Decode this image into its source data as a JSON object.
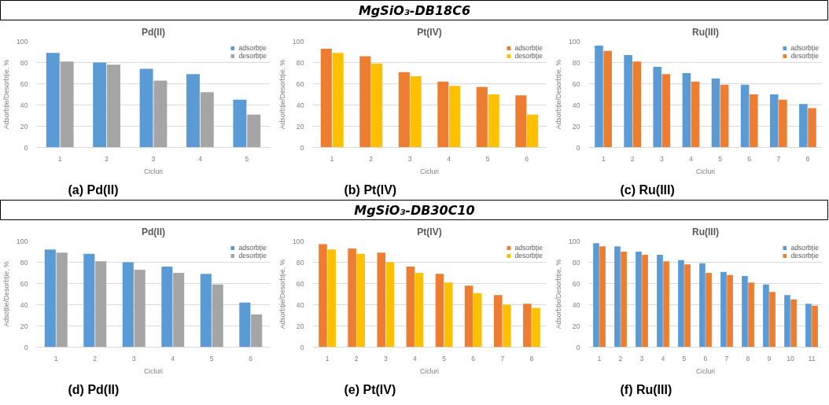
{
  "chart_data": [
    {
      "type": "other",
      "title": "MgSiO₃-DB18C6"
    },
    {
      "type": "bar",
      "title": "Pd(II)",
      "xlabel": "Cicluri",
      "ylabel": "Adsorbție/Desorbție, %",
      "annotations": [
        "(a) Pd(II)"
      ],
      "categories": [
        "1",
        "2",
        "3",
        "4",
        "5"
      ],
      "ylim": [
        0,
        100
      ],
      "yticks": [
        0,
        20,
        40,
        60,
        80,
        100
      ],
      "grid": "y",
      "legend": "top right",
      "series": [
        {
          "name": "adsorbție",
          "color": "#5b9bd5",
          "values": [
            89,
            80,
            74,
            69,
            45
          ]
        },
        {
          "name": "desorbție",
          "color": "#a5a5a5",
          "values": [
            81,
            78,
            63,
            52,
            31
          ]
        }
      ]
    },
    {
      "type": "bar",
      "title": "Pt(IV)",
      "xlabel": "Cicluri",
      "ylabel": "Adsorbție/Desorbție, %",
      "annotations": [
        "(b) Pt(IV)"
      ],
      "categories": [
        "1",
        "2",
        "3",
        "4",
        "5",
        "6"
      ],
      "ylim": [
        0,
        100
      ],
      "yticks": [
        0,
        20,
        40,
        60,
        80,
        100
      ],
      "grid": "y",
      "legend": "top right",
      "series": [
        {
          "name": "adsorbție",
          "color": "#ed7d31",
          "values": [
            93,
            86,
            71,
            62,
            57,
            49
          ]
        },
        {
          "name": "desorbție",
          "color": "#ffc000",
          "values": [
            89,
            79,
            67,
            58,
            50,
            31
          ]
        }
      ]
    },
    {
      "type": "bar",
      "title": "Ru(III)",
      "xlabel": "Cicluri",
      "ylabel": "Adsorbție/Desorbție, %",
      "annotations": [
        "(c) Ru(III)"
      ],
      "categories": [
        "1",
        "2",
        "3",
        "4",
        "5",
        "6",
        "7",
        "8"
      ],
      "ylim": [
        0,
        100
      ],
      "yticks": [
        0,
        20,
        40,
        60,
        80,
        100
      ],
      "grid": "y",
      "legend": "top right",
      "series": [
        {
          "name": "adsorbție",
          "color": "#5b9bd5",
          "values": [
            96,
            87,
            76,
            70,
            65,
            59,
            50,
            41
          ]
        },
        {
          "name": "desorbție",
          "color": "#ed7d31",
          "values": [
            91,
            81,
            69,
            62,
            59,
            50,
            45,
            37
          ]
        }
      ]
    },
    {
      "type": "other",
      "title": "MgSiO₃-DB30C10"
    },
    {
      "type": "bar",
      "title": "Pd(II)",
      "xlabel": "Cicluri",
      "ylabel": "Adsoțtie/Desorbție, %",
      "annotations": [
        "(d) Pd(II)"
      ],
      "categories": [
        "1",
        "2",
        "3",
        "4",
        "5",
        "6"
      ],
      "ylim": [
        0,
        100
      ],
      "yticks": [
        0,
        20,
        40,
        60,
        80,
        100
      ],
      "grid": "y",
      "legend": "top right",
      "series": [
        {
          "name": "adsorbție",
          "color": "#5b9bd5",
          "values": [
            92,
            88,
            80,
            76,
            69,
            42
          ]
        },
        {
          "name": "desorbție",
          "color": "#a5a5a5",
          "values": [
            89,
            81,
            73,
            70,
            59,
            31
          ]
        }
      ]
    },
    {
      "type": "bar",
      "title": "Pt(IV)",
      "xlabel": "Cicluri",
      "ylabel": "Adsorbție/Desorbție, %",
      "annotations": [
        "(e) Pt(IV)"
      ],
      "categories": [
        "1",
        "2",
        "3",
        "4",
        "5",
        "6",
        "7",
        "8"
      ],
      "ylim": [
        0,
        100
      ],
      "yticks": [
        0,
        20,
        40,
        60,
        80,
        100
      ],
      "grid": "y",
      "legend": "top right",
      "series": [
        {
          "name": "adsorbție",
          "color": "#ed7d31",
          "values": [
            97,
            93,
            89,
            76,
            69,
            58,
            49,
            41
          ]
        },
        {
          "name": "desorbție",
          "color": "#ffc000",
          "values": [
            92,
            88,
            80,
            70,
            61,
            51,
            40,
            37
          ]
        }
      ]
    },
    {
      "type": "bar",
      "title": "Ru(III)",
      "xlabel": "Cicluri",
      "ylabel": "Adsorbție/Desorbție, %",
      "annotations": [
        "(f) Ru(III)"
      ],
      "categories": [
        "1",
        "2",
        "3",
        "4",
        "5",
        "6",
        "7",
        "8",
        "9",
        "10",
        "11"
      ],
      "ylim": [
        0,
        100
      ],
      "yticks": [
        0,
        20,
        40,
        60,
        80,
        100
      ],
      "grid": "y",
      "legend": "top right",
      "series": [
        {
          "name": "adsorbție",
          "color": "#5b9bd5",
          "values": [
            98,
            95,
            90,
            87,
            82,
            79,
            71,
            67,
            59,
            49,
            41
          ]
        },
        {
          "name": "desorbție",
          "color": "#ed7d31",
          "values": [
            95,
            90,
            87,
            81,
            78,
            70,
            68,
            61,
            52,
            45,
            39
          ]
        }
      ]
    }
  ]
}
